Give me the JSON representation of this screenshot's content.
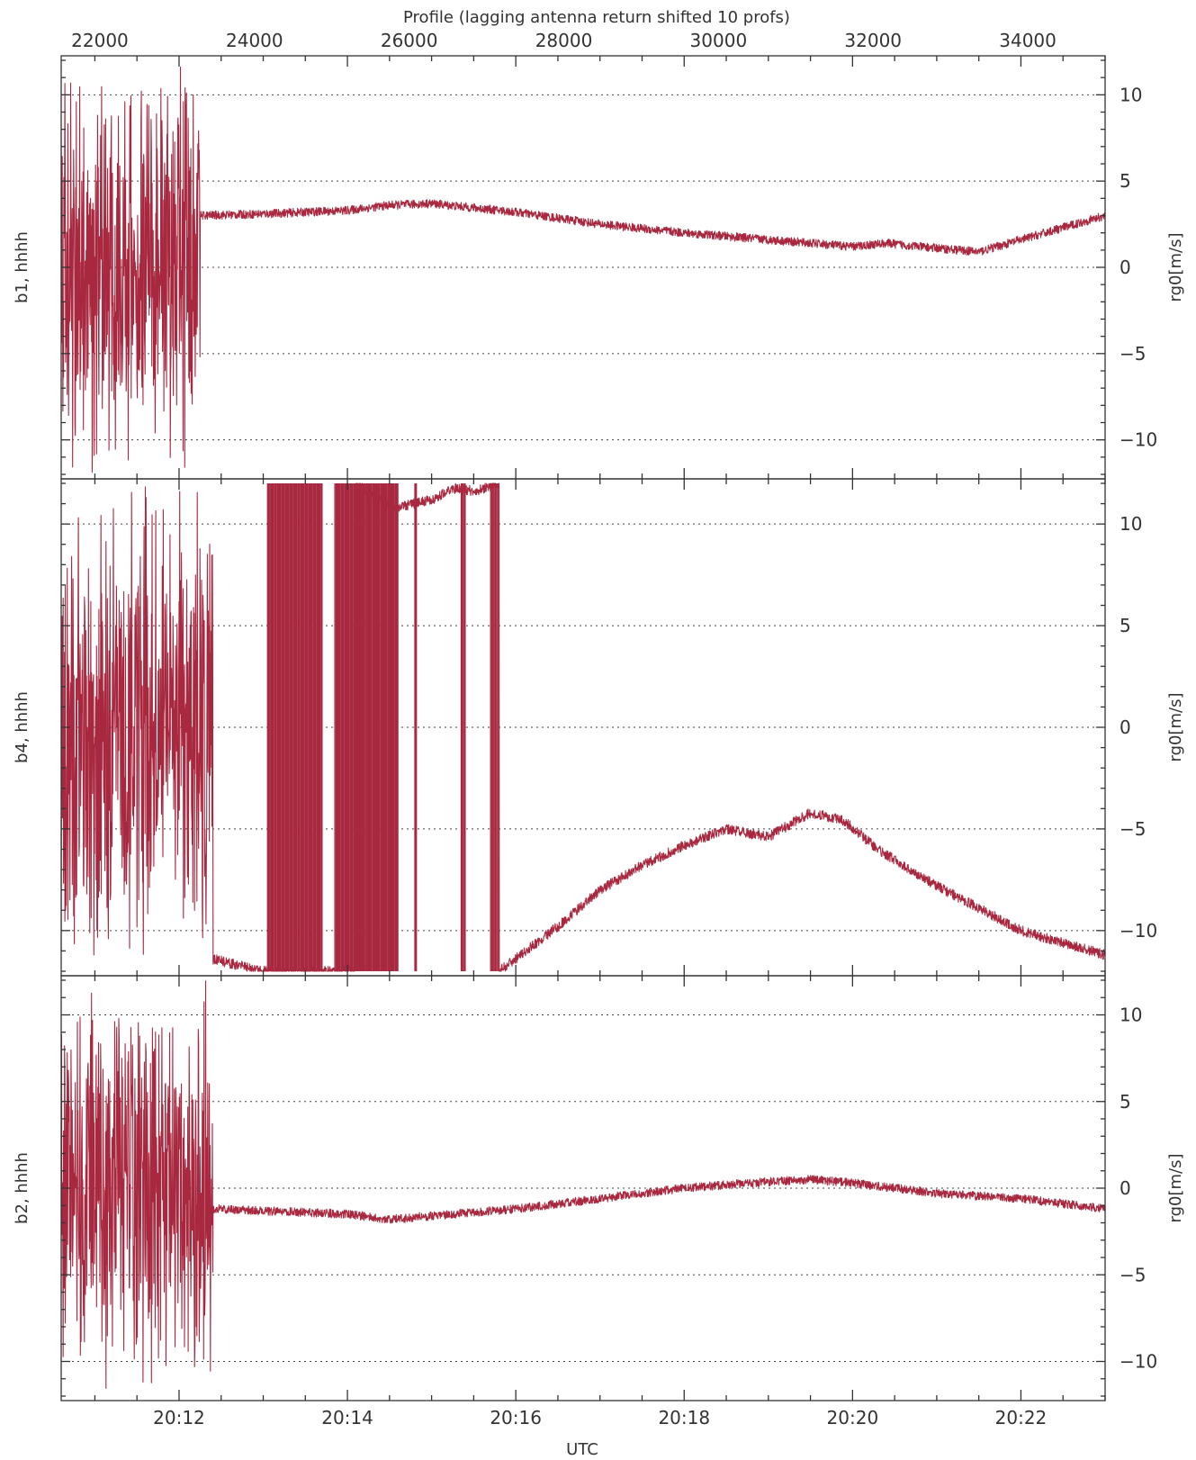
{
  "chart_data": {
    "type": "line",
    "top_axis": {
      "label": "Profile (lagging antenna return shifted 10 profs)",
      "range": [
        21500,
        35000
      ],
      "ticks": [
        22000,
        24000,
        26000,
        28000,
        30000,
        32000,
        34000
      ],
      "tick_labels": [
        "22000",
        "24000",
        "26000",
        "28000",
        "30000",
        "32000",
        "34000"
      ]
    },
    "bottom_axis": {
      "label": "UTC",
      "range_minutes": [
        1210.6,
        1223
      ],
      "ticks_minutes": [
        1212,
        1214,
        1216,
        1218,
        1220,
        1222
      ],
      "tick_labels": [
        "20:12",
        "20:14",
        "20:16",
        "20:18",
        "20:20",
        "20:22"
      ]
    },
    "color": "#a8283f",
    "grid": "horizontal dotted",
    "panels": [
      {
        "name": "b1, hhhh",
        "ylabel_right": "rg0[m/s]",
        "ylim": [
          -12,
          12
        ],
        "yticks": [
          -10,
          -5,
          0,
          5,
          10
        ],
        "ytick_labels": [
          "-10",
          "-5",
          "0",
          "5",
          "10"
        ],
        "noise_until": 1212.25,
        "noise_amplitude": 12,
        "baseline": [
          [
            1212.25,
            3.0
          ],
          [
            1213,
            3.1
          ],
          [
            1214,
            3.3
          ],
          [
            1214.5,
            3.6
          ],
          [
            1215,
            3.7
          ],
          [
            1216,
            3.2
          ],
          [
            1217,
            2.5
          ],
          [
            1218,
            2.0
          ],
          [
            1219,
            1.6
          ],
          [
            1220,
            1.2
          ],
          [
            1220.4,
            1.4
          ],
          [
            1220.8,
            1.2
          ],
          [
            1221.5,
            0.9
          ],
          [
            1222,
            1.6
          ],
          [
            1223,
            3.0
          ]
        ]
      },
      {
        "name": "b4, hhhh",
        "ylabel_right": "rg0[m/s]",
        "ylim": [
          -12,
          12
        ],
        "yticks": [
          -10,
          -5,
          0,
          5,
          10
        ],
        "ytick_labels": [
          "-10",
          "-5",
          "0",
          "5",
          "10"
        ],
        "noise_until": 1212.4,
        "noise_amplitude": 12,
        "baseline": [
          [
            1212.4,
            -11.4
          ],
          [
            1213,
            -12.0
          ],
          [
            1214,
            -12.0
          ],
          [
            1215,
            -12.0
          ],
          [
            1215.8,
            -12.0
          ],
          [
            1216.5,
            -9.8
          ],
          [
            1217,
            -8.0
          ],
          [
            1217.5,
            -6.8
          ],
          [
            1218,
            -5.8
          ],
          [
            1218.5,
            -5.0
          ],
          [
            1219,
            -5.4
          ],
          [
            1219.5,
            -4.2
          ],
          [
            1219.9,
            -4.6
          ],
          [
            1220.3,
            -6.0
          ],
          [
            1221,
            -7.8
          ],
          [
            1221.5,
            -8.9
          ],
          [
            1222,
            -10.0
          ],
          [
            1222.5,
            -10.6
          ],
          [
            1223,
            -11.2
          ]
        ],
        "saturated_segment": [
          [
            1214.1,
            12.0
          ],
          [
            1214.3,
            11.4
          ],
          [
            1214.6,
            10.8
          ],
          [
            1215,
            11.2
          ],
          [
            1215.3,
            11.8
          ],
          [
            1215.5,
            11.6
          ],
          [
            1215.8,
            12.0
          ]
        ],
        "spike_bursts": [
          [
            1213.05,
            1213.7
          ],
          [
            1213.85,
            1214.15
          ],
          [
            1214.1,
            1214.6
          ],
          [
            1214.8,
            1214.82
          ],
          [
            1215.35,
            1215.4
          ],
          [
            1215.7,
            1215.8
          ]
        ]
      },
      {
        "name": "b2, hhhh",
        "ylabel_right": "rg0[m/s]",
        "ylim": [
          -12,
          12
        ],
        "yticks": [
          -10,
          -5,
          0,
          5,
          10
        ],
        "ytick_labels": [
          "-10",
          "-5",
          "0",
          "5",
          "10"
        ],
        "noise_until": 1212.4,
        "noise_amplitude": 12,
        "baseline": [
          [
            1212.4,
            -1.2
          ],
          [
            1213,
            -1.3
          ],
          [
            1214,
            -1.5
          ],
          [
            1214.5,
            -1.8
          ],
          [
            1215,
            -1.6
          ],
          [
            1216,
            -1.2
          ],
          [
            1217,
            -0.6
          ],
          [
            1218,
            0.0
          ],
          [
            1218.8,
            0.3
          ],
          [
            1219.5,
            0.5
          ],
          [
            1220,
            0.3
          ],
          [
            1221,
            -0.3
          ],
          [
            1222,
            -0.6
          ],
          [
            1223,
            -1.2
          ]
        ]
      }
    ]
  }
}
